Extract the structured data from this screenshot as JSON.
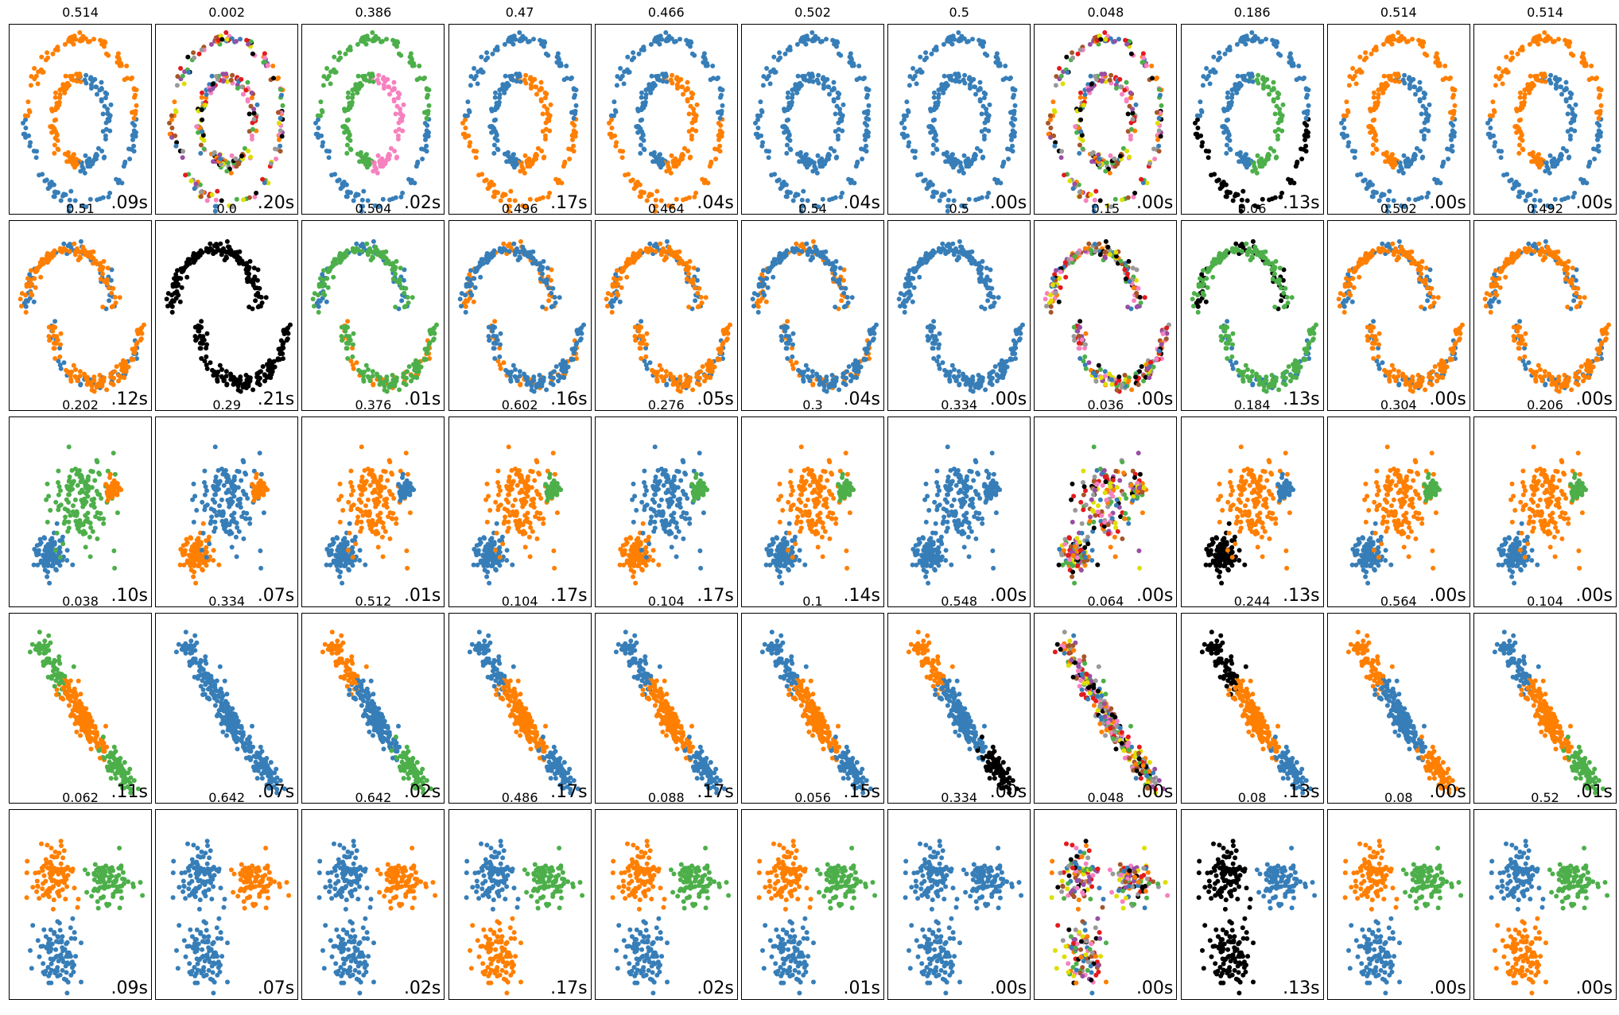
{
  "chart_data": {
    "type": "scatter",
    "title": "",
    "layout": {
      "rows": 5,
      "cols": 11
    },
    "colors": {
      "blue": "#377eb8",
      "orange": "#ff7f00",
      "green": "#4daf4a",
      "pink": "#f781bf",
      "brown": "#a65628",
      "purple": "#984ea3",
      "gray": "#999999",
      "red": "#e41a1c",
      "yellow": "#dede00",
      "black": "#000000"
    },
    "datasets": [
      "noisy_circles",
      "noisy_moons",
      "varied",
      "aniso",
      "blobs"
    ],
    "scores": [
      [
        "0.514",
        "0.002",
        "0.386",
        "0.47",
        "0.466",
        "0.502",
        "0.5",
        "0.048",
        "0.186",
        "0.514",
        "0.514"
      ],
      [
        "0.51",
        "0.0",
        "0.504",
        "0.496",
        "0.464",
        "0.54",
        "0.5",
        "0.15",
        "0.06",
        "0.502",
        "0.492"
      ],
      [
        "0.202",
        "0.29",
        "0.376",
        "0.602",
        "0.276",
        "0.3",
        "0.334",
        "0.036",
        "0.184",
        "0.304",
        "0.206"
      ],
      [
        "0.038",
        "0.334",
        "0.512",
        "0.104",
        "0.104",
        "0.1",
        "0.548",
        "0.064",
        "0.244",
        "0.564",
        "0.104"
      ],
      [
        "0.062",
        "0.642",
        "0.642",
        "0.486",
        "0.088",
        "0.056",
        "0.334",
        "0.048",
        "0.08",
        "0.08",
        "0.52"
      ]
    ],
    "times": [
      [
        ".09s",
        ".20s",
        ".02s",
        ".17s",
        ".04s",
        ".04s",
        ".00s",
        ".00s",
        ".13s",
        ".00s",
        ".00s"
      ],
      [
        ".12s",
        ".21s",
        ".01s",
        ".16s",
        ".05s",
        ".04s",
        ".00s",
        ".00s",
        ".13s",
        ".00s",
        ".00s"
      ],
      [
        ".10s",
        ".07s",
        ".01s",
        ".17s",
        ".17s",
        ".14s",
        ".00s",
        ".00s",
        ".13s",
        ".00s",
        ".00s"
      ],
      [
        ".11s",
        ".07s",
        ".02s",
        ".17s",
        ".17s",
        ".15s",
        ".00s",
        ".00s",
        ".13s",
        ".00s",
        ".01s"
      ],
      [
        ".09s",
        ".07s",
        ".02s",
        ".17s",
        ".02s",
        ".01s",
        ".00s",
        ".00s",
        ".13s",
        ".00s",
        ".00s"
      ]
    ],
    "dominant_colors": [
      [
        [
          "blue",
          "orange"
        ],
        [
          "mixed"
        ],
        [
          "blue",
          "green",
          "pink"
        ],
        [
          "orange",
          "blue"
        ],
        [
          "orange",
          "blue"
        ],
        [
          "blue"
        ],
        [
          "blue"
        ],
        [
          "mixed"
        ],
        [
          "black",
          "blue",
          "green",
          "orange"
        ],
        [
          "blue",
          "orange"
        ],
        [
          "blue",
          "orange"
        ]
      ],
      [
        [
          "blue",
          "orange"
        ],
        [
          "black"
        ],
        [
          "blue",
          "green",
          "orange"
        ],
        [
          "orange",
          "blue"
        ],
        [
          "blue",
          "orange"
        ],
        [
          "orange",
          "blue"
        ],
        [
          "blue"
        ],
        [
          "mixed"
        ],
        [
          "black",
          "green",
          "blue"
        ],
        [
          "blue",
          "orange"
        ],
        [
          "blue",
          "orange"
        ]
      ],
      [
        [
          "blue",
          "green",
          "orange"
        ],
        [
          "orange",
          "blue"
        ],
        [
          "blue",
          "orange"
        ],
        [
          "blue",
          "orange",
          "green"
        ],
        [
          "orange",
          "blue",
          "green"
        ],
        [
          "blue",
          "orange",
          "green"
        ],
        [
          "blue"
        ],
        [
          "mixed"
        ],
        [
          "black",
          "orange",
          "blue"
        ],
        [
          "blue",
          "orange",
          "green"
        ],
        [
          "blue",
          "orange",
          "green"
        ]
      ],
      [
        [
          "green",
          "orange"
        ],
        [
          "blue"
        ],
        [
          "orange",
          "blue",
          "green"
        ],
        [
          "blue",
          "orange"
        ],
        [
          "blue",
          "orange"
        ],
        [
          "blue",
          "orange"
        ],
        [
          "orange",
          "blue",
          "black"
        ],
        [
          "mixed"
        ],
        [
          "black",
          "orange",
          "blue"
        ],
        [
          "orange",
          "blue"
        ],
        [
          "blue",
          "orange",
          "green"
        ]
      ],
      [
        [
          "orange",
          "green",
          "blue"
        ],
        [
          "blue",
          "orange"
        ],
        [
          "blue",
          "orange"
        ],
        [
          "blue",
          "green",
          "orange"
        ],
        [
          "orange",
          "green",
          "blue"
        ],
        [
          "orange",
          "green",
          "blue"
        ],
        [
          "blue"
        ],
        [
          "mixed"
        ],
        [
          "black",
          "blue"
        ],
        [
          "orange",
          "green",
          "blue"
        ],
        [
          "blue",
          "green",
          "orange"
        ]
      ]
    ]
  }
}
